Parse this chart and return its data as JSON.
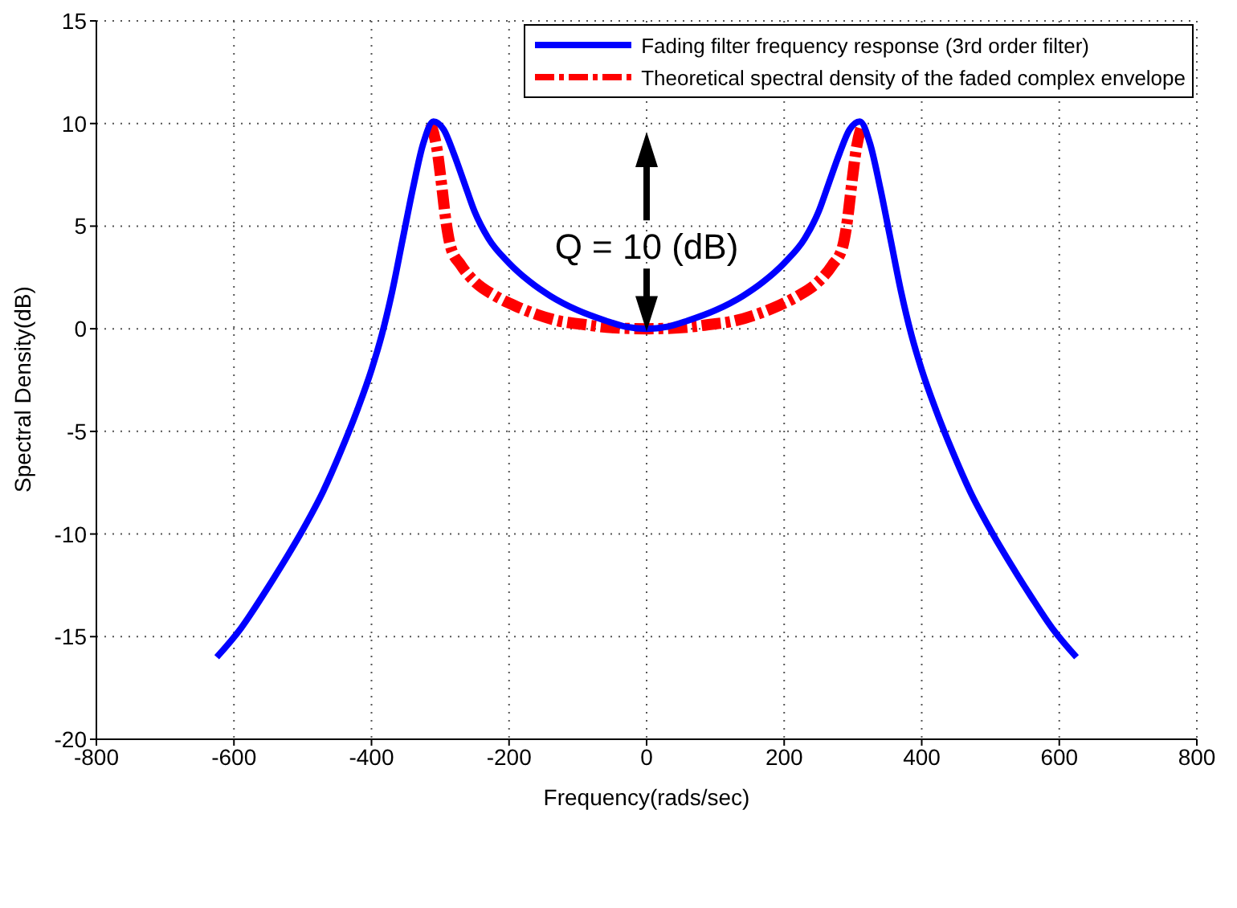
{
  "chart_data": {
    "type": "line",
    "xlabel": "Frequency(rads/sec)",
    "ylabel": "Spectral Density(dB)",
    "xlim": [
      -800,
      800
    ],
    "xticks": [
      -800,
      -600,
      -400,
      -200,
      0,
      200,
      400,
      600,
      800
    ],
    "ylim": [
      -20,
      15
    ],
    "yticks": [
      -20,
      -15,
      -10,
      -5,
      0,
      5,
      10,
      15
    ],
    "grid": true,
    "legend": "top right",
    "marker": "none",
    "annotations": [
      {
        "text": "Q = 10 (dB)",
        "x": 0,
        "y": 0
      }
    ],
    "series": [
      {
        "name": "Fading filter frequency response (3rd order filter)",
        "color": "#0000ff",
        "line_style": "solid",
        "x": [
          -625,
          -590,
          -560,
          -530,
          -500,
          -470,
          -445,
          -420,
          -400,
          -385,
          -370,
          -355,
          -340,
          -325,
          -310,
          -295,
          -280,
          -265,
          -250,
          -230,
          -200,
          -170,
          -140,
          -100,
          -60,
          -30,
          0,
          30,
          60,
          100,
          140,
          170,
          200,
          230,
          250,
          265,
          280,
          295,
          310,
          325,
          340,
          355,
          370,
          385,
          400,
          420,
          445,
          470,
          500,
          530,
          560,
          590,
          625
        ],
        "values": [
          -16,
          -14.6,
          -13.1,
          -11.5,
          -9.8,
          -7.9,
          -6,
          -3.9,
          -2,
          -0.3,
          1.8,
          4.3,
          6.8,
          9,
          10.1,
          9.7,
          8.5,
          7.1,
          5.7,
          4.4,
          3.2,
          2.3,
          1.6,
          0.9,
          0.4,
          0.1,
          0,
          0.1,
          0.4,
          0.9,
          1.6,
          2.3,
          3.2,
          4.4,
          5.7,
          7.1,
          8.5,
          9.7,
          10.1,
          9,
          6.8,
          4.3,
          1.8,
          -0.3,
          -2,
          -3.9,
          -6,
          -7.9,
          -9.8,
          -11.5,
          -13.1,
          -14.6,
          -16
        ]
      },
      {
        "name": "Theoretical spectral density of the faded complex envelope",
        "color": "#ff0000",
        "line_style": "dashed",
        "x": [
          -314,
          -305,
          -298,
          -292,
          -285,
          -270,
          -250,
          -220,
          -190,
          -160,
          -130,
          -90,
          -50,
          0,
          50,
          90,
          130,
          160,
          190,
          220,
          250,
          270,
          285,
          292,
          298,
          305,
          314
        ],
        "values": [
          10,
          8.8,
          7,
          5.3,
          4,
          3.1,
          2.3,
          1.6,
          1.1,
          0.7,
          0.4,
          0.2,
          0.05,
          0,
          0.05,
          0.2,
          0.4,
          0.7,
          1.1,
          1.6,
          2.3,
          3.1,
          4,
          5.3,
          7,
          8.8,
          10
        ]
      }
    ]
  }
}
